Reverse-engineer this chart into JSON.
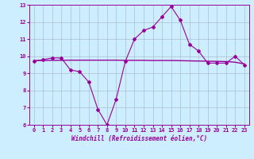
{
  "title": "",
  "xlabel": "Windchill (Refroidissement éolien,°C)",
  "background_color": "#cceeff",
  "line_color": "#990099",
  "grid_color": "#aabbcc",
  "x": [
    0,
    1,
    2,
    3,
    4,
    5,
    6,
    7,
    8,
    9,
    10,
    11,
    12,
    13,
    14,
    15,
    16,
    17,
    18,
    19,
    20,
    21,
    22,
    23
  ],
  "y_curve": [
    9.7,
    9.8,
    9.9,
    9.9,
    9.2,
    9.1,
    8.5,
    6.9,
    6.0,
    7.5,
    9.7,
    11.0,
    11.5,
    11.7,
    12.3,
    12.9,
    12.1,
    10.7,
    10.3,
    9.6,
    9.6,
    9.6,
    10.0,
    9.5
  ],
  "y_flat": [
    9.75,
    9.75,
    9.76,
    9.76,
    9.77,
    9.77,
    9.77,
    9.77,
    9.77,
    9.77,
    9.76,
    9.76,
    9.76,
    9.75,
    9.75,
    9.75,
    9.74,
    9.73,
    9.72,
    9.71,
    9.7,
    9.69,
    9.65,
    9.55
  ],
  "ylim": [
    6,
    13
  ],
  "xlim": [
    -0.5,
    23.5
  ],
  "yticks": [
    6,
    7,
    8,
    9,
    10,
    11,
    12,
    13
  ],
  "xticks": [
    0,
    1,
    2,
    3,
    4,
    5,
    6,
    7,
    8,
    9,
    10,
    11,
    12,
    13,
    14,
    15,
    16,
    17,
    18,
    19,
    20,
    21,
    22,
    23
  ],
  "marker": "D",
  "markersize": 2.0,
  "linewidth": 0.8,
  "tick_fontsize": 5.0,
  "xlabel_fontsize": 5.5
}
